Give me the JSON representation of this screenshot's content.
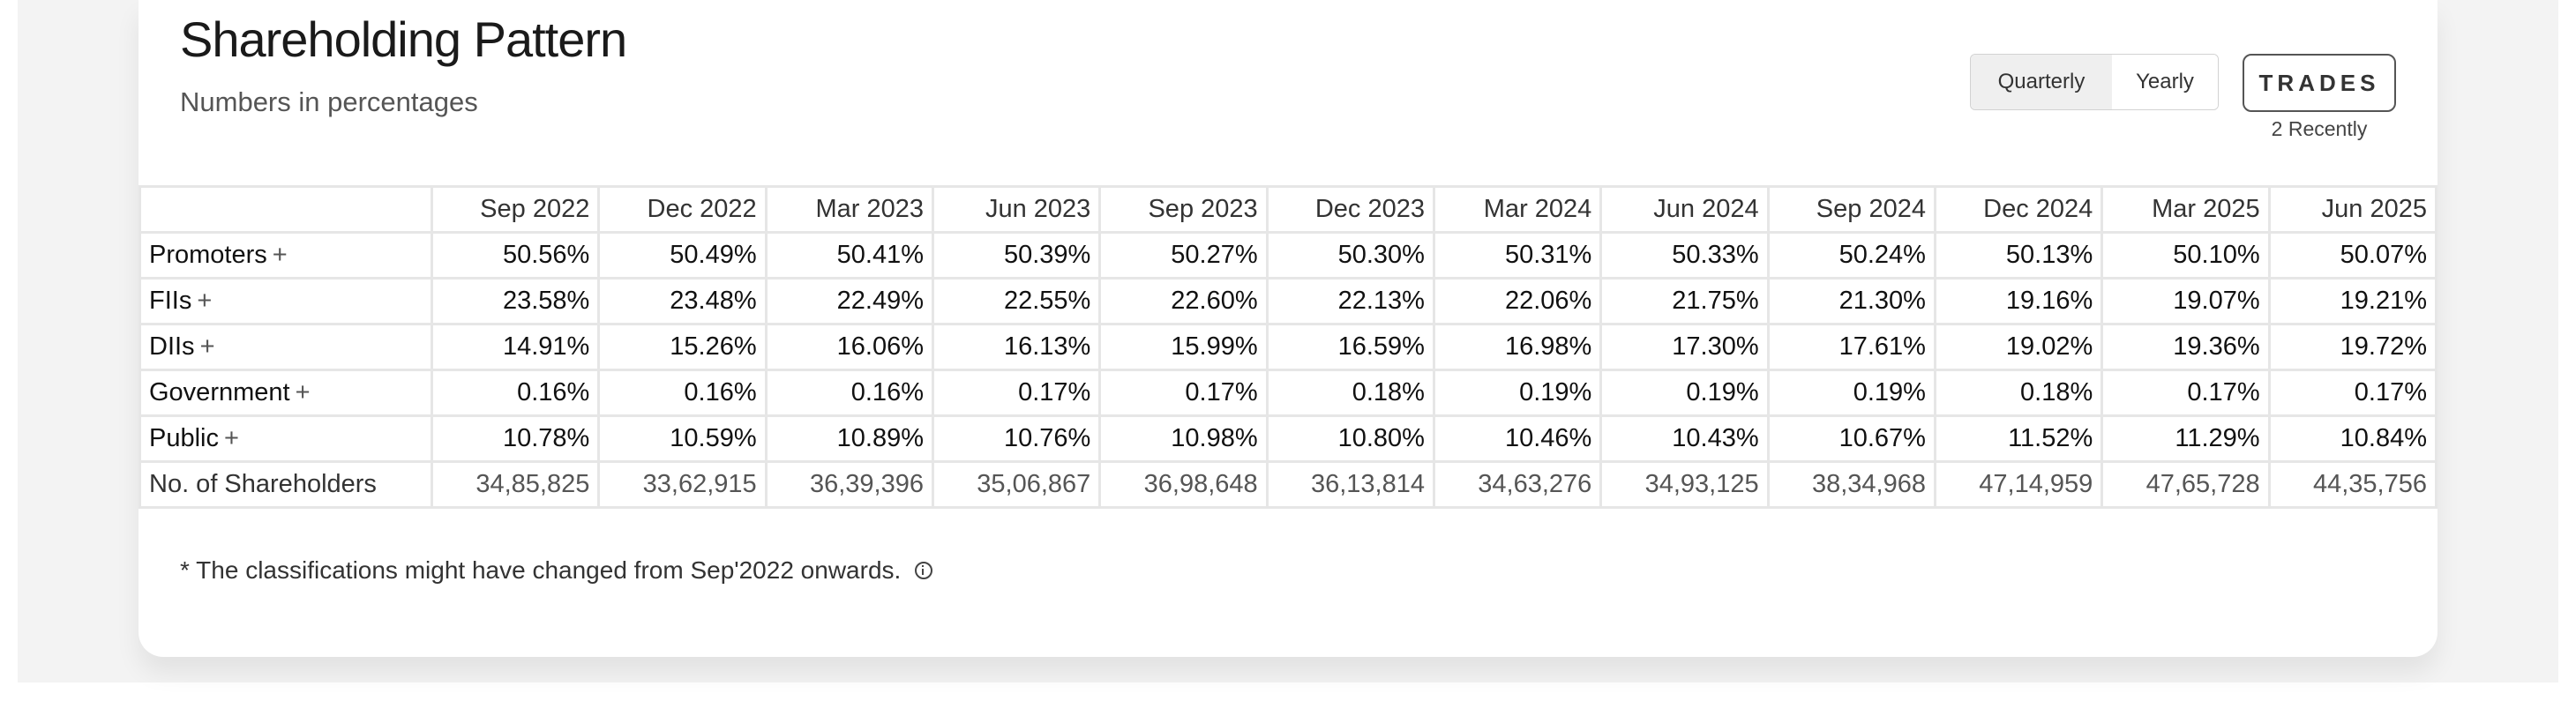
{
  "header": {
    "title": "Shareholding Pattern",
    "subtitle": "Numbers in percentages"
  },
  "toggle": {
    "options": [
      "Quarterly",
      "Yearly"
    ],
    "selected": "Quarterly"
  },
  "trades": {
    "label": "TRADES",
    "sub": "2 Recently"
  },
  "table": {
    "columns": [
      "Sep 2022",
      "Dec 2022",
      "Mar 2023",
      "Jun 2023",
      "Sep 2023",
      "Dec 2023",
      "Mar 2024",
      "Jun 2024",
      "Sep 2024",
      "Dec 2024",
      "Mar 2025",
      "Jun 2025"
    ],
    "rows": [
      {
        "label": "Promoters",
        "expand": "+",
        "values": [
          "50.56%",
          "50.49%",
          "50.41%",
          "50.39%",
          "50.27%",
          "50.30%",
          "50.31%",
          "50.33%",
          "50.24%",
          "50.13%",
          "50.10%",
          "50.07%"
        ]
      },
      {
        "label": "FIIs",
        "expand": "+",
        "values": [
          "23.58%",
          "23.48%",
          "22.49%",
          "22.55%",
          "22.60%",
          "22.13%",
          "22.06%",
          "21.75%",
          "21.30%",
          "19.16%",
          "19.07%",
          "19.21%"
        ]
      },
      {
        "label": "DIIs",
        "expand": "+",
        "values": [
          "14.91%",
          "15.26%",
          "16.06%",
          "16.13%",
          "15.99%",
          "16.59%",
          "16.98%",
          "17.30%",
          "17.61%",
          "19.02%",
          "19.36%",
          "19.72%"
        ]
      },
      {
        "label": "Government",
        "expand": "+",
        "values": [
          "0.16%",
          "0.16%",
          "0.16%",
          "0.17%",
          "0.17%",
          "0.18%",
          "0.19%",
          "0.19%",
          "0.19%",
          "0.18%",
          "0.17%",
          "0.17%"
        ]
      },
      {
        "label": "Public",
        "expand": "+",
        "values": [
          "10.78%",
          "10.59%",
          "10.89%",
          "10.76%",
          "10.98%",
          "10.80%",
          "10.46%",
          "10.43%",
          "10.67%",
          "11.52%",
          "11.29%",
          "10.84%"
        ]
      },
      {
        "label": "No. of Shareholders",
        "expand": "",
        "values": [
          "34,85,825",
          "33,62,915",
          "36,39,396",
          "35,06,867",
          "36,98,648",
          "36,13,814",
          "34,63,276",
          "34,93,125",
          "38,34,968",
          "47,14,959",
          "47,65,728",
          "44,35,756"
        ]
      }
    ]
  },
  "footer": {
    "note": "* The classifications might have changed from Sep'2022 onwards."
  },
  "icons": {
    "note_icon": "info-icon"
  }
}
